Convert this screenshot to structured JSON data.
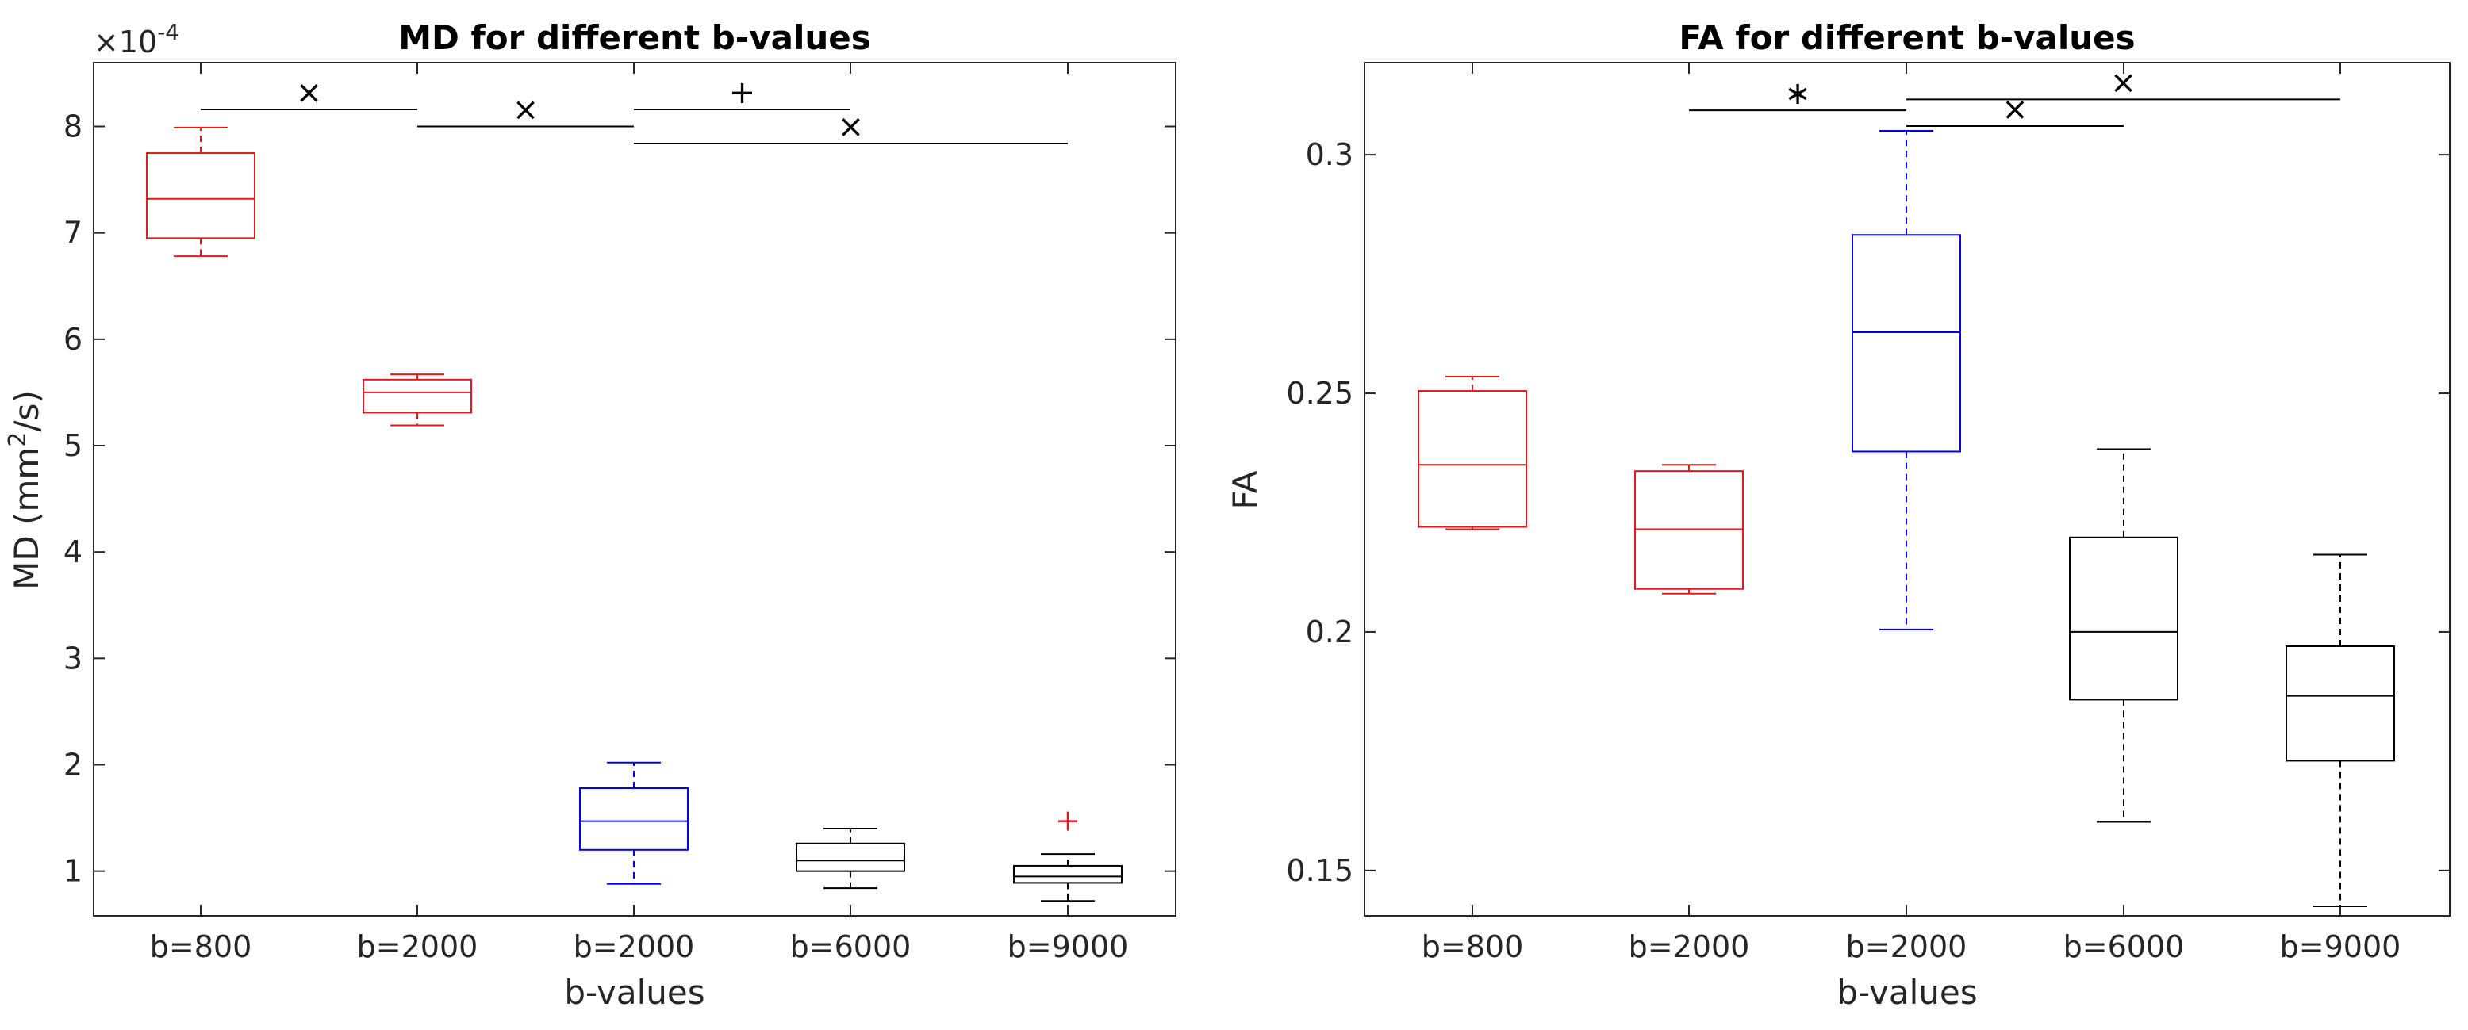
{
  "chart_data": [
    {
      "type": "box",
      "title": "MD for different b-values",
      "xlabel": "b-values",
      "ylabel_prefix": "MD (mm",
      "ylabel_sup": "2",
      "ylabel_suffix": "/s)",
      "exponent_label": "×10",
      "exponent_sup": "-4",
      "ylim": [
        0.58,
        8.6
      ],
      "yticks": [
        1,
        2,
        3,
        4,
        5,
        6,
        7,
        8
      ],
      "ytick_labels": [
        "1",
        "2",
        "3",
        "4",
        "5",
        "6",
        "7",
        "8"
      ],
      "categories": [
        "b=800",
        "b=2000",
        "b=2000",
        "b=6000",
        "b=9000"
      ],
      "boxes": [
        {
          "category": "b=800",
          "color": "#e31a1c",
          "q1": 6.95,
          "median": 7.32,
          "q3": 7.75,
          "whisker_low": 6.78,
          "whisker_high": 7.99,
          "outliers": []
        },
        {
          "category": "b=2000",
          "color": "#e31a1c",
          "q1": 5.31,
          "median": 5.5,
          "q3": 5.62,
          "whisker_low": 5.19,
          "whisker_high": 5.67,
          "outliers": []
        },
        {
          "category": "b=2000",
          "color": "#0000ee",
          "q1": 1.2,
          "median": 1.47,
          "q3": 1.78,
          "whisker_low": 0.88,
          "whisker_high": 2.02,
          "outliers": []
        },
        {
          "category": "b=6000",
          "color": "#000000",
          "q1": 1.0,
          "median": 1.1,
          "q3": 1.26,
          "whisker_low": 0.84,
          "whisker_high": 1.4,
          "outliers": []
        },
        {
          "category": "b=9000",
          "color": "#000000",
          "q1": 0.89,
          "median": 0.95,
          "q3": 1.05,
          "whisker_low": 0.72,
          "whisker_high": 1.16,
          "outliers": [
            1.47
          ]
        }
      ],
      "significance": [
        {
          "from": 0,
          "to": 1,
          "y": 8.16,
          "symbol": "×"
        },
        {
          "from": 1,
          "to": 2,
          "y": 8.0,
          "symbol": "×"
        },
        {
          "from": 2,
          "to": 3,
          "y": 8.16,
          "symbol": "+"
        },
        {
          "from": 2,
          "to": 4,
          "y": 7.84,
          "symbol": "×"
        }
      ]
    },
    {
      "type": "box",
      "title": "FA for different b-values",
      "xlabel": "b-values",
      "ylabel": "FA",
      "ylim": [
        0.1405,
        0.3193
      ],
      "yticks": [
        0.15,
        0.2,
        0.25,
        0.3
      ],
      "ytick_labels": [
        "0.15",
        "0.2",
        "0.25",
        "0.3"
      ],
      "categories": [
        "b=800",
        "b=2000",
        "b=2000",
        "b=6000",
        "b=9000"
      ],
      "boxes": [
        {
          "category": "b=800",
          "color": "#e31a1c",
          "q1": 0.222,
          "median": 0.235,
          "q3": 0.2505,
          "whisker_low": 0.2215,
          "whisker_high": 0.2535,
          "outliers": []
        },
        {
          "category": "b=2000",
          "color": "#e31a1c",
          "q1": 0.209,
          "median": 0.2215,
          "q3": 0.2337,
          "whisker_low": 0.208,
          "whisker_high": 0.235,
          "outliers": []
        },
        {
          "category": "b=2000",
          "color": "#0000ee",
          "q1": 0.2378,
          "median": 0.2628,
          "q3": 0.2832,
          "whisker_low": 0.2005,
          "whisker_high": 0.305,
          "outliers": []
        },
        {
          "category": "b=6000",
          "color": "#000000",
          "q1": 0.1858,
          "median": 0.2,
          "q3": 0.2198,
          "whisker_low": 0.1602,
          "whisker_high": 0.2383,
          "outliers": []
        },
        {
          "category": "b=9000",
          "color": "#000000",
          "q1": 0.173,
          "median": 0.1866,
          "q3": 0.197,
          "whisker_low": 0.1425,
          "whisker_high": 0.2162,
          "outliers": []
        }
      ],
      "significance": [
        {
          "from": 1,
          "to": 2,
          "y": 0.3093,
          "symbol": "∗"
        },
        {
          "from": 2,
          "to": 3,
          "y": 0.306,
          "symbol": "×"
        },
        {
          "from": 2,
          "to": 4,
          "y": 0.3116,
          "symbol": "×"
        }
      ]
    }
  ]
}
